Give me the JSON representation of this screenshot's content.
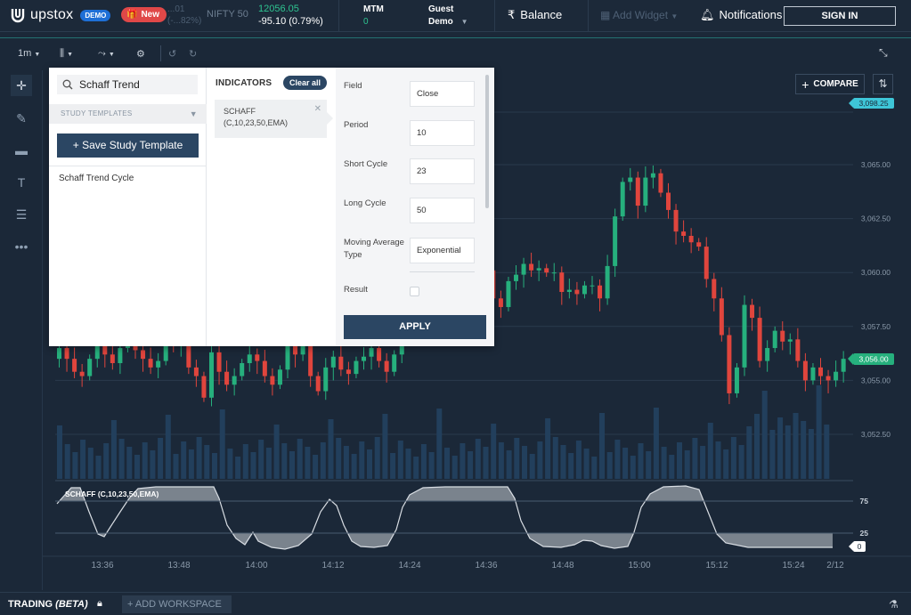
{
  "topbar": {
    "brand": "upstox",
    "demo_badge": "DEMO",
    "new_badge": "New",
    "ghost_ticker_top": "...01",
    "ghost_ticker_bottom": "(-...82%)",
    "index_name": "NIFTY 50",
    "index_price": "12056.05",
    "index_change": "-95.10 (0.79%)",
    "mtm_label": "MTM",
    "mtm_value": "0",
    "guest_top": "Guest",
    "guest_bottom": "Demo",
    "balance_label": "Balance",
    "balance_symbol": "₹",
    "add_widget_label": "Add Widget",
    "notifications_label": "Notifications",
    "signin_label": "SIGN IN"
  },
  "toolbar": {
    "interval": "1m",
    "compare_label": "COMPARE"
  },
  "panel": {
    "search_value": "Schaff Trend",
    "study_templates_label": "STUDY TEMPLATES",
    "save_template_label": "+ Save Study Template",
    "study_item": "Schaff Trend Cycle",
    "indicators_title": "INDICATORS",
    "clear_all_label": "Clear all",
    "indicator_name": "SCHAFF",
    "indicator_params": "(C,10,23,50,EMA)",
    "fields": [
      {
        "label": "Field",
        "value": "Close"
      },
      {
        "label": "Period",
        "value": "10"
      },
      {
        "label": "Short Cycle",
        "value": "23"
      },
      {
        "label": "Long Cycle",
        "value": "50"
      },
      {
        "label": "Moving Average Type",
        "value": "Exponential"
      }
    ],
    "result_label": "Result",
    "apply_label": "APPLY"
  },
  "chart_data": {
    "type": "candlestick",
    "price_axis_labels": [
      "3,065.00",
      "3,062.50",
      "3,060.00",
      "3,057.50",
      "3,055.00",
      "3,052.50"
    ],
    "price_axis_values": [
      3065.0,
      3062.5,
      3060.0,
      3057.5,
      3055.0,
      3052.5
    ],
    "high_marker": "3,098.25",
    "current_price_marker": "3,056.00",
    "time_labels": [
      "13:36",
      "13:48",
      "14:00",
      "14:12",
      "14:24",
      "14:36",
      "14:48",
      "15:00",
      "15:12",
      "15:24",
      "2/12"
    ],
    "study_label": "SCHAFF (C,10,23,50,EMA)",
    "study_levels": [
      "75",
      "25"
    ],
    "study_current": "0",
    "colors": {
      "up": "#26b07d",
      "down": "#e0453d",
      "volume": "#2a4a6a",
      "background": "#1b2838"
    }
  },
  "bottombar": {
    "trading_label": "TRADING",
    "beta_label": "(BETA)",
    "add_workspace_label": "ADD WORKSPACE"
  }
}
